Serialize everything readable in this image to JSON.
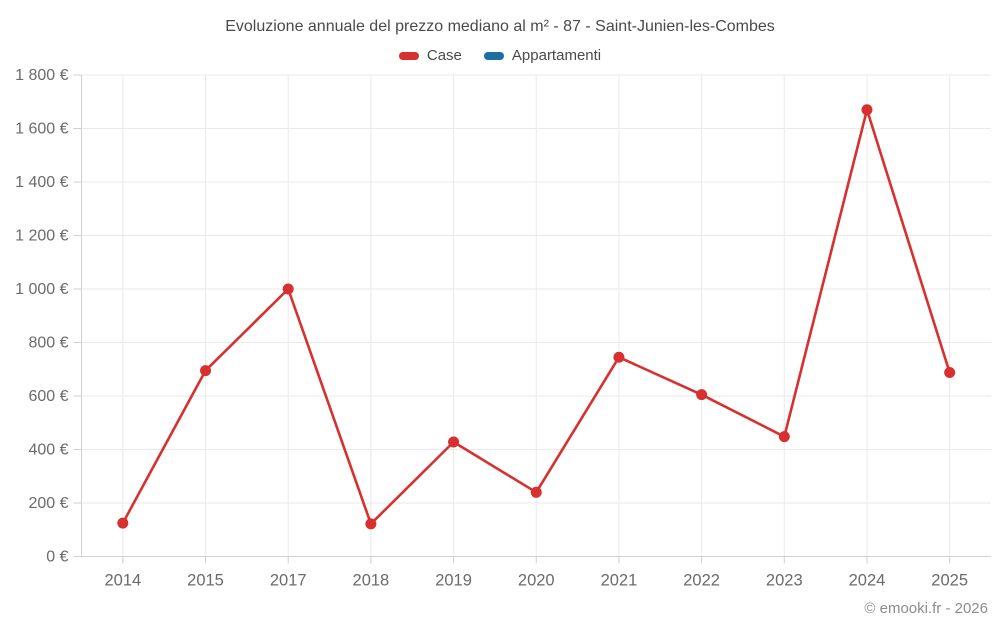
{
  "title": "Evoluzione annuale del prezzo mediano al m² - 87 - Saint-Junien-les-Combes",
  "legend": [
    {
      "label": "Case",
      "color": "#d7302f"
    },
    {
      "label": "Appartamenti",
      "color": "#1c6ea4"
    }
  ],
  "footer": "© emooki.fr - 2026",
  "colors": {
    "grid": "#eaeaea",
    "axis": "#d0d0d0",
    "tick": "#cfcfcf",
    "axis_text": "#6b6b6b"
  },
  "chart_data": {
    "type": "line",
    "categories": [
      "2014",
      "2015",
      "2017",
      "2018",
      "2019",
      "2020",
      "2021",
      "2022",
      "2023",
      "2024",
      "2025"
    ],
    "series": [
      {
        "name": "Case",
        "color": "#d7302f",
        "values": [
          125,
          695,
          1000,
          122,
          428,
          240,
          745,
          605,
          448,
          1670,
          688
        ]
      },
      {
        "name": "Appartamenti",
        "color": "#1c6ea4",
        "values": []
      }
    ],
    "title": "Evoluzione annuale del prezzo mediano al m² - 87 - Saint-Junien-les-Combes",
    "xlabel": "",
    "ylabel": "",
    "ylim": [
      0,
      1800
    ],
    "yticks": [
      0,
      200,
      400,
      600,
      800,
      1000,
      1200,
      1400,
      1600,
      1800
    ],
    "ytick_suffix": " €",
    "grid": true,
    "legend_position": "top",
    "markers": true
  }
}
